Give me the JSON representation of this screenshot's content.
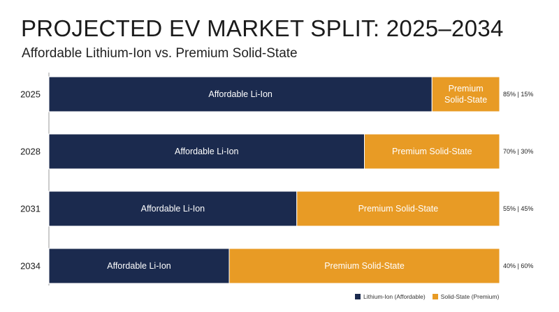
{
  "chart_data": {
    "type": "bar",
    "orientation": "horizontal",
    "stacked": true,
    "title": "PROJECTED EV MARKET SPLIT: 2025–2034",
    "subtitle": "Affordable Lithium-Ion vs. Premium Solid-State",
    "categories": [
      "2025",
      "2028",
      "2031",
      "2034"
    ],
    "series": [
      {
        "name": "Lithium-Ion (Affordable)",
        "bar_label": "Affordable Li-Ion",
        "color": "#1b2a4e",
        "values": [
          85,
          70,
          55,
          40
        ]
      },
      {
        "name": "Solid-State (Premium)",
        "bar_label": "Premium Solid-State",
        "color": "#e89b25",
        "values": [
          15,
          30,
          45,
          60
        ]
      }
    ],
    "share_labels": [
      "85% | 15%",
      "70% | 30%",
      "55% | 45%",
      "40% | 60%"
    ],
    "xlim": [
      0,
      100
    ],
    "unit": "%",
    "grid": false,
    "legend_position": "bottom-right"
  }
}
